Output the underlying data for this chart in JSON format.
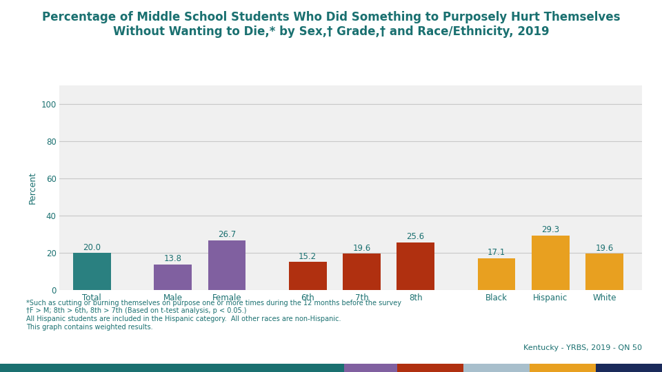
{
  "title_line1": "Percentage of Middle School Students Who Did Something to Purposely Hurt Themselves",
  "title_line2": "Without Wanting to Die,* by Sex,† Grade,† and Race/Ethnicity, 2019",
  "categories": [
    "Total",
    "Male",
    "Female",
    "6th",
    "7th",
    "8th",
    "Black",
    "Hispanic",
    "White"
  ],
  "values": [
    20.0,
    13.8,
    26.7,
    15.2,
    19.6,
    25.6,
    17.1,
    29.3,
    19.6
  ],
  "bar_colors": [
    "#2a8080",
    "#8060a0",
    "#8060a0",
    "#b03010",
    "#b03010",
    "#b03010",
    "#e8a020",
    "#e8a020",
    "#e8a020"
  ],
  "ylabel": "Percent",
  "ylim": [
    0,
    110
  ],
  "yticks": [
    0,
    20,
    40,
    60,
    80,
    100
  ],
  "title_color": "#1a7070",
  "tick_color": "#1a7070",
  "label_color": "#1a7070",
  "value_color": "#1a7070",
  "grid_color": "#c8c8c8",
  "background_color": "#ffffff",
  "plot_bg_color": "#f0f0f0",
  "footnote_line1": "*Such as cutting or burning themselves on purpose one or more times during the 12 months before the survey",
  "footnote_line2": "†F > M; 8th > 6th, 8th > 7th (Based on t-test analysis, p < 0.05.)",
  "footnote_line3": "All Hispanic students are included in the Hispanic category.  All other races are non-Hispanic.",
  "footnote_line4": "This graph contains weighted results.",
  "bottom_credit": "Kentucky - YRBS, 2019 - QN 50",
  "bottom_bar_colors": [
    "#1a7070",
    "#8060a0",
    "#b03010",
    "#a8bfcc",
    "#e8a020",
    "#1a2a5a"
  ],
  "bottom_bar_widths": [
    0.52,
    0.08,
    0.1,
    0.1,
    0.1,
    0.1
  ],
  "title_fontsize": 12,
  "ylabel_fontsize": 9,
  "tick_fontsize": 8.5,
  "value_fontsize": 8.5,
  "footnote_fontsize": 7,
  "credit_fontsize": 8
}
